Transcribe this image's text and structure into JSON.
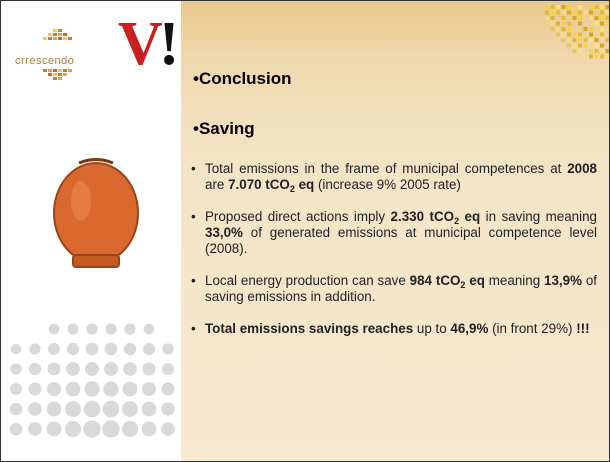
{
  "logo": {
    "name": "crrescendo",
    "brand": "V",
    "brand_tail": "!"
  },
  "headings": [
    "Conclusion",
    "Saving"
  ],
  "bullets": [
    [
      {
        "text": "Total emissions in the frame of municipal competences at "
      },
      {
        "text": "2008",
        "bold": true
      },
      {
        "text": " are "
      },
      {
        "text": "7.070 tCO",
        "bold": true
      },
      {
        "text": "2",
        "bold": true,
        "sub": true
      },
      {
        "text": " eq",
        "bold": true
      },
      {
        "text": " (increase 9% 2005 rate)"
      }
    ],
    [
      {
        "text": "Proposed direct actions imply "
      },
      {
        "text": "2.330 tCO",
        "bold": true
      },
      {
        "text": "2",
        "bold": true,
        "sub": true
      },
      {
        "text": " eq",
        "bold": true
      },
      {
        "text": " in saving meaning "
      },
      {
        "text": "33,0%",
        "bold": true
      },
      {
        "text": " of generated emissions at municipal competence level (2008)."
      }
    ],
    [
      {
        "text": "Local energy production can save "
      },
      {
        "text": "984 tCO",
        "bold": true
      },
      {
        "text": "2",
        "bold": true,
        "sub": true
      },
      {
        "text": " eq",
        "bold": true
      },
      {
        "text": " meaning "
      },
      {
        "text": "13,9%",
        "bold": true
      },
      {
        "text": " of saving emissions in addition."
      }
    ],
    [
      {
        "text": "Total emissions savings reaches",
        "bold": true
      },
      {
        "text": " up to "
      },
      {
        "text": "46,9%",
        "bold": true
      },
      {
        "text": " (in front 29%) "
      },
      {
        "text": "!!!",
        "bold": true
      }
    ]
  ]
}
